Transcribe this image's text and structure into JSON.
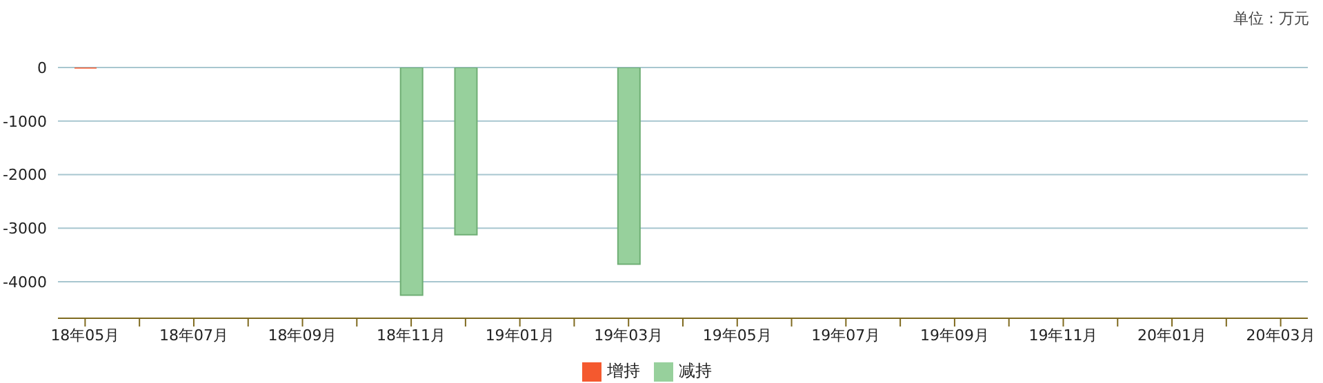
{
  "chart_data": {
    "type": "bar",
    "annotations": [
      "单位：万元"
    ],
    "categories": [
      "18年05月",
      null,
      "18年07月",
      null,
      "18年09月",
      null,
      "18年11月",
      null,
      "19年01月",
      null,
      "19年03月",
      null,
      "19年05月",
      null,
      "19年07月",
      null,
      "19年09月",
      null,
      "19年11月",
      null,
      "20年01月",
      null,
      "20年03月"
    ],
    "series": [
      {
        "name": "增持",
        "color": "#f4592f",
        "values": [
          -20,
          null,
          null,
          null,
          null,
          null,
          null,
          null,
          null,
          null,
          null,
          null,
          null,
          null,
          null,
          null,
          null,
          null,
          null,
          null,
          null,
          null,
          null
        ]
      },
      {
        "name": "减持",
        "color": "#97d09c",
        "values": [
          null,
          null,
          null,
          null,
          null,
          null,
          -4250,
          -3120,
          null,
          null,
          -3670,
          null,
          null,
          null,
          null,
          null,
          null,
          null,
          null,
          null,
          null,
          null,
          null
        ]
      }
    ],
    "stacked": true,
    "ylim": [
      -4680,
      0
    ],
    "yticks": [
      0,
      -1000,
      -2000,
      -3000,
      -4000
    ],
    "grid": "y",
    "legend": "bottom"
  }
}
